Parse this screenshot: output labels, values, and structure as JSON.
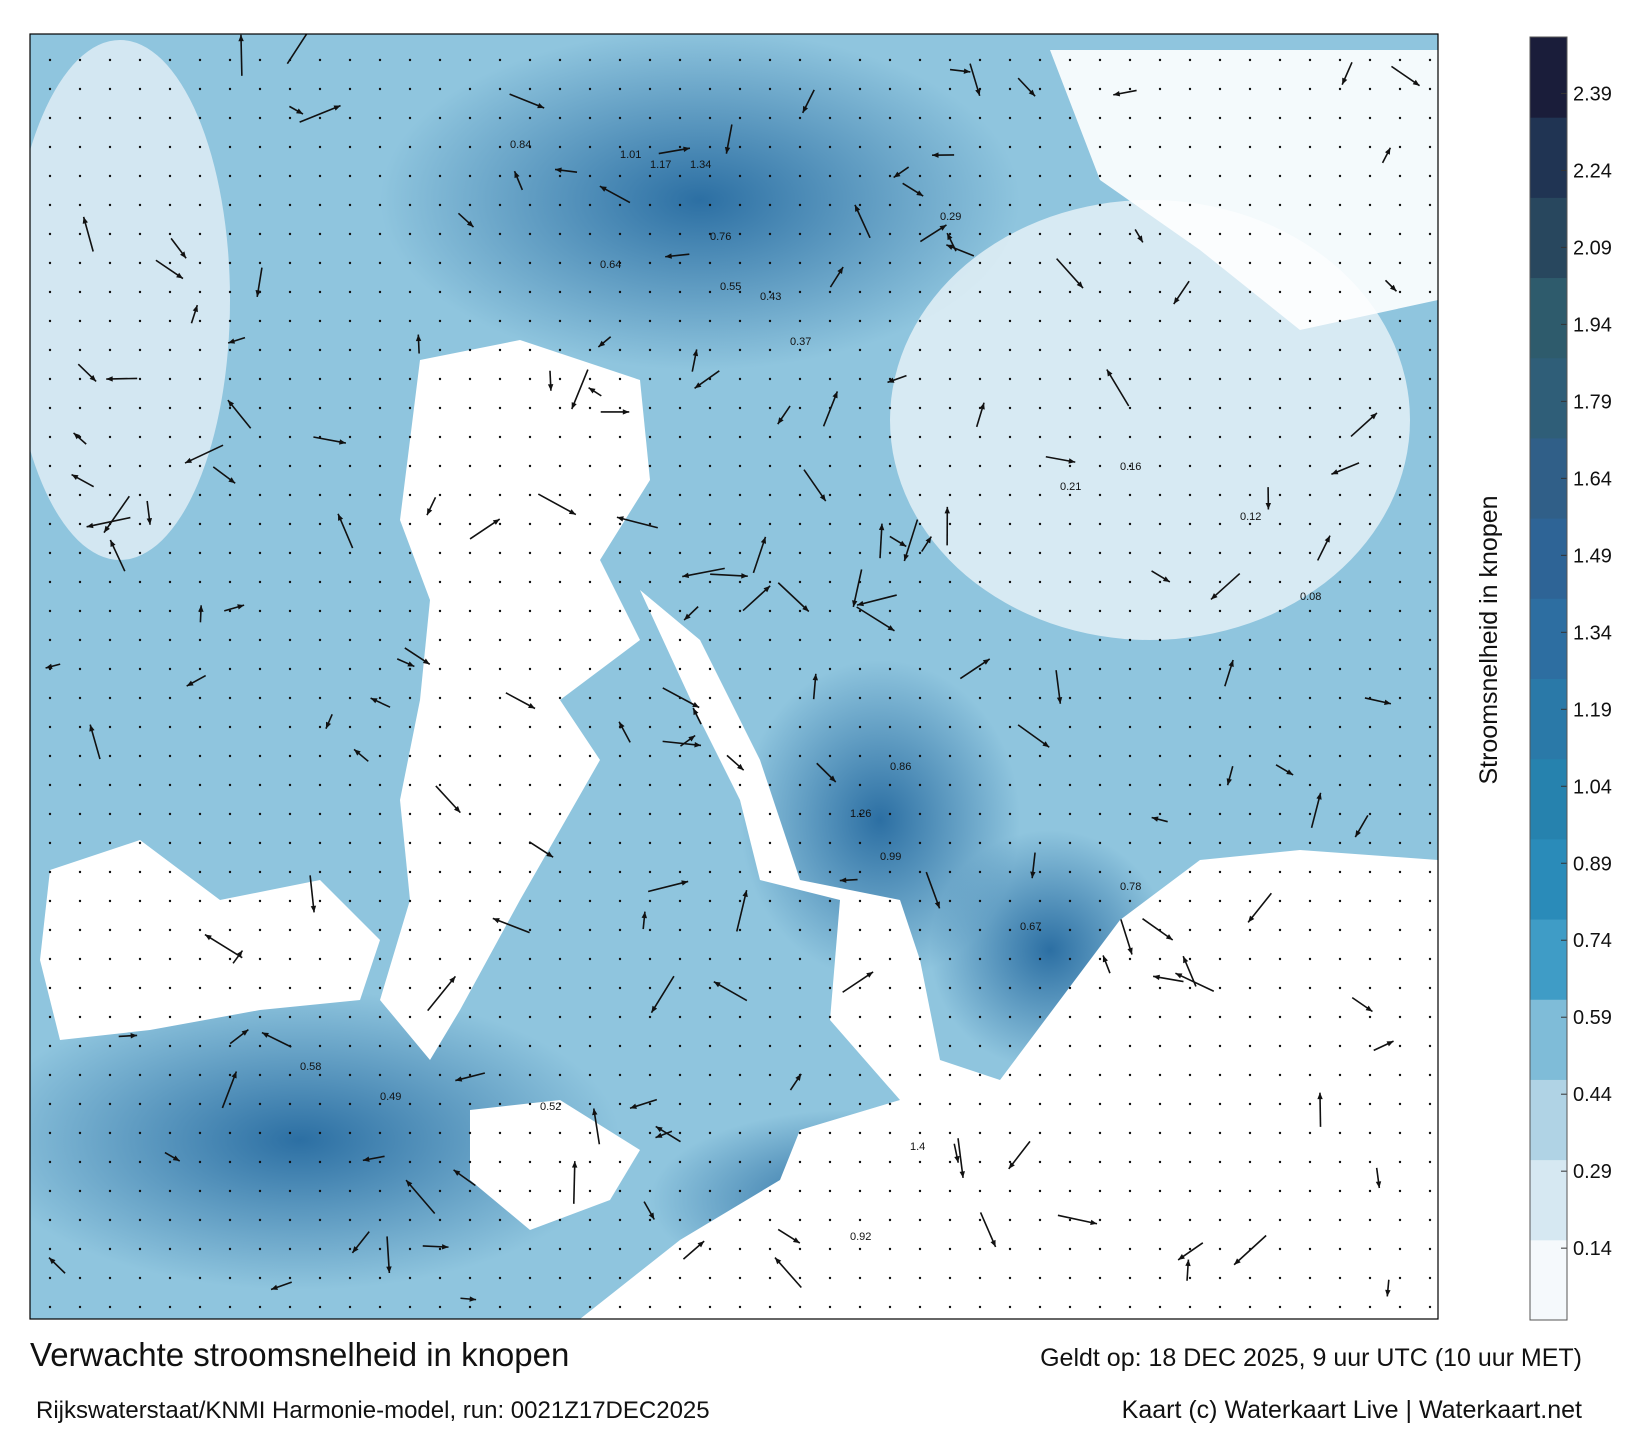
{
  "chart_data": {
    "type": "map",
    "title": "Verwachte stroomsnelheid in knopen",
    "subtitle": "Rijkswaterstaat/KNMI Harmonie-model, run: 0021Z17DEC2025",
    "valid_time": "Geldt op: 18 DEC 2025, 9 uur UTC (10 uur MET)",
    "credit": "Kaart (c) Waterkaart Live | Waterkaart.net",
    "colorbar": {
      "label": "Stroomsnelheid in knopen",
      "lim": [
        0,
        2.5
      ],
      "ticks": [
        0.14,
        0.29,
        0.44,
        0.59,
        0.74,
        0.89,
        1.04,
        1.19,
        1.34,
        1.49,
        1.64,
        1.79,
        1.94,
        2.09,
        2.24,
        2.39
      ],
      "colors": [
        "#f5f9fc",
        "#d6e8f2",
        "#b0d3e5",
        "#7fbcd8",
        "#3f9cc6",
        "#2a8bb9",
        "#2682ae",
        "#2a79a8",
        "#2d6ea1",
        "#2e6496",
        "#305f88",
        "#2f5e78",
        "#2e5b6c",
        "#28475e",
        "#203453",
        "#1a1d3a"
      ]
    },
    "current_labels": [
      "1.17",
      "1.34",
      "1.01",
      "0.84",
      "0.76",
      "0.64",
      "0.55",
      "0.43",
      "0.37",
      "0.29",
      "0.21",
      "0.16",
      "0.12",
      "0.08",
      "1.26",
      "0.99",
      "0.86",
      "0.78",
      "0.67",
      "0.58",
      "0.49",
      "0.52",
      "1.4",
      "0.92"
    ]
  }
}
